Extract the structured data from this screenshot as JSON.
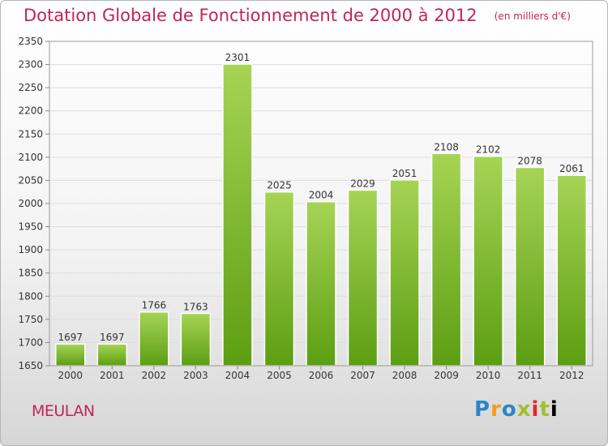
{
  "header": {
    "title": "Dotation Globale de Fonctionnement de 2000 à 2012",
    "unit": "(en milliers d'€)"
  },
  "footer": {
    "town": "MEULAN",
    "brand": [
      "P",
      "r",
      "o",
      "x",
      "i",
      "t",
      "i"
    ]
  },
  "colors": {
    "title": "#c0245c",
    "bar_light": "#a6d455",
    "bar_dark": "#5c9e12",
    "grid": "#dddddd"
  },
  "chart_data": {
    "type": "bar",
    "title": "Dotation Globale de Fonctionnement de 2000 à 2012",
    "xlabel": "",
    "ylabel": "",
    "categories": [
      "2000",
      "2001",
      "2002",
      "2003",
      "2004",
      "2005",
      "2006",
      "2007",
      "2008",
      "2009",
      "2010",
      "2011",
      "2012"
    ],
    "values": [
      1697,
      1697,
      1766,
      1763,
      2301,
      2025,
      2004,
      2029,
      2051,
      2108,
      2102,
      2078,
      2061
    ],
    "ylim": [
      1650,
      2350
    ],
    "yticks": [
      1650,
      1700,
      1750,
      1800,
      1850,
      1900,
      1950,
      2000,
      2050,
      2100,
      2150,
      2200,
      2250,
      2300,
      2350
    ],
    "grid": true,
    "data_labels": true
  }
}
